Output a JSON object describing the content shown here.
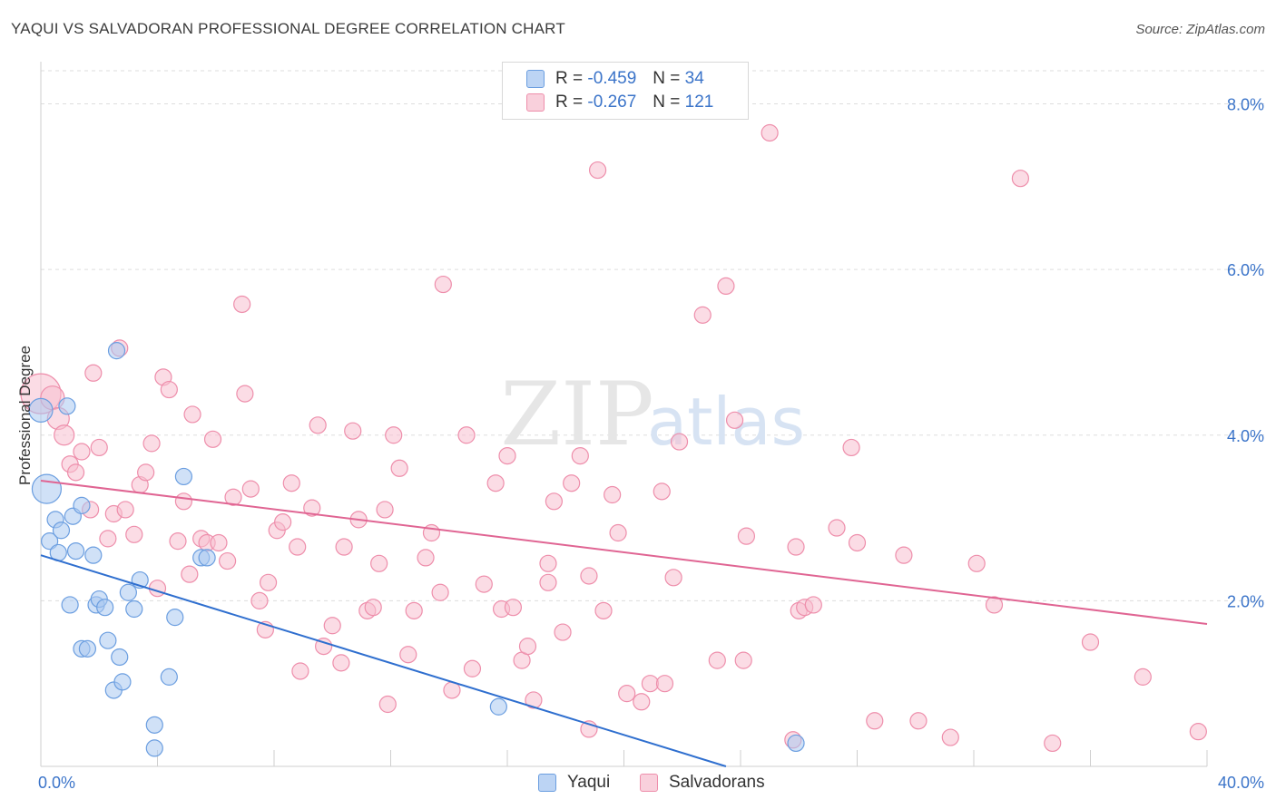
{
  "header": {
    "title": "YAQUI VS SALVADORAN PROFESSIONAL DEGREE CORRELATION CHART",
    "source": "Source: ZipAtlas.com"
  },
  "legend_top": [
    {
      "r_label": "R =",
      "r_value": "-0.459",
      "n_label": "N =",
      "n_value": "34"
    },
    {
      "r_label": "R =",
      "r_value": "-0.267",
      "n_label": "N =",
      "n_value": "121"
    }
  ],
  "colors": {
    "yaqui_fill": "#a9c8f0",
    "yaqui_stroke": "#6b9ee0",
    "yaqui_line": "#2f6fcf",
    "salv_fill": "#f7bfd0",
    "salv_stroke": "#ee8eab",
    "salv_line": "#e06593",
    "tick_label": "#3b74c9"
  },
  "watermark": {
    "zip": "ZIP",
    "atlas": "atlas"
  },
  "chart_data": {
    "type": "scatter",
    "title": "YAQUI VS SALVADORAN PROFESSIONAL DEGREE CORRELATION CHART",
    "xlabel": "",
    "ylabel": "Professional Degree",
    "xlim": [
      0,
      40
    ],
    "ylim": [
      0,
      8.4
    ],
    "x_tick_labels": [
      "0.0%",
      "40.0%"
    ],
    "y_ticks": [
      2,
      4,
      6,
      8
    ],
    "y_tick_labels": [
      "2.0%",
      "4.0%",
      "6.0%",
      "8.0%"
    ],
    "grid": true,
    "legend_position": "bottom",
    "series": [
      {
        "name": "Yaqui",
        "r": -0.459,
        "n": 34,
        "trend": {
          "x": [
            0,
            23.5
          ],
          "y": [
            2.55,
            0.0
          ]
        },
        "points": [
          [
            0.2,
            3.35,
            16
          ],
          [
            0.3,
            2.72,
            9
          ],
          [
            0.5,
            2.98,
            9
          ],
          [
            0.6,
            2.58,
            9
          ],
          [
            0.7,
            2.85,
            9
          ],
          [
            0.9,
            4.35,
            9
          ],
          [
            1.0,
            1.95,
            9
          ],
          [
            1.1,
            3.02,
            9
          ],
          [
            1.2,
            2.6,
            9
          ],
          [
            1.4,
            3.15,
            9
          ],
          [
            1.4,
            1.42,
            9
          ],
          [
            1.6,
            1.42,
            9
          ],
          [
            1.8,
            2.55,
            9
          ],
          [
            1.9,
            1.95,
            9
          ],
          [
            2.0,
            2.02,
            9
          ],
          [
            2.2,
            1.92,
            9
          ],
          [
            2.3,
            1.52,
            9
          ],
          [
            2.5,
            0.92,
            9
          ],
          [
            2.7,
            1.32,
            9
          ],
          [
            2.8,
            1.02,
            9
          ],
          [
            3.0,
            2.1,
            9
          ],
          [
            3.2,
            1.9,
            9
          ],
          [
            3.4,
            2.25,
            9
          ],
          [
            2.6,
            5.02,
            9
          ],
          [
            3.9,
            0.5,
            9
          ],
          [
            3.9,
            0.22,
            9
          ],
          [
            4.4,
            1.08,
            9
          ],
          [
            4.6,
            1.8,
            9
          ],
          [
            4.9,
            3.5,
            9
          ],
          [
            5.5,
            2.52,
            9
          ],
          [
            5.7,
            2.52,
            9
          ],
          [
            15.7,
            0.72,
            9
          ],
          [
            25.9,
            0.28,
            9
          ],
          [
            0.0,
            4.3,
            13
          ]
        ]
      },
      {
        "name": "Salvadorans",
        "r": -0.267,
        "n": 121,
        "trend": {
          "x": [
            0,
            40
          ],
          "y": [
            3.45,
            1.72
          ]
        },
        "points": [
          [
            0.0,
            4.5,
            22
          ],
          [
            0.4,
            4.45,
            13
          ],
          [
            0.6,
            4.2,
            12
          ],
          [
            0.8,
            4.0,
            11
          ],
          [
            1.0,
            3.65,
            9
          ],
          [
            1.2,
            3.55,
            9
          ],
          [
            1.4,
            3.8,
            9
          ],
          [
            1.7,
            3.1,
            9
          ],
          [
            1.8,
            4.75,
            9
          ],
          [
            2.0,
            3.85,
            9
          ],
          [
            2.3,
            2.75,
            9
          ],
          [
            2.5,
            3.05,
            9
          ],
          [
            2.7,
            5.05,
            9
          ],
          [
            2.9,
            3.1,
            9
          ],
          [
            3.2,
            2.8,
            9
          ],
          [
            3.4,
            3.4,
            9
          ],
          [
            3.6,
            3.55,
            9
          ],
          [
            3.8,
            3.9,
            9
          ],
          [
            4.0,
            2.15,
            9
          ],
          [
            4.2,
            4.7,
            9
          ],
          [
            4.4,
            4.55,
            9
          ],
          [
            4.7,
            2.72,
            9
          ],
          [
            4.9,
            3.2,
            9
          ],
          [
            5.1,
            2.32,
            9
          ],
          [
            5.2,
            4.25,
            9
          ],
          [
            5.5,
            2.75,
            9
          ],
          [
            5.7,
            2.7,
            9
          ],
          [
            5.9,
            3.95,
            9
          ],
          [
            6.1,
            2.7,
            9
          ],
          [
            6.4,
            2.48,
            9
          ],
          [
            6.6,
            3.25,
            9
          ],
          [
            6.9,
            5.58,
            9
          ],
          [
            7.0,
            4.5,
            9
          ],
          [
            7.2,
            3.35,
            9
          ],
          [
            7.5,
            2.0,
            9
          ],
          [
            7.7,
            1.65,
            9
          ],
          [
            7.8,
            2.22,
            9
          ],
          [
            8.1,
            2.85,
            9
          ],
          [
            8.3,
            2.95,
            9
          ],
          [
            8.6,
            3.42,
            9
          ],
          [
            8.8,
            2.65,
            9
          ],
          [
            8.9,
            1.15,
            9
          ],
          [
            9.3,
            3.12,
            9
          ],
          [
            9.5,
            4.12,
            9
          ],
          [
            9.7,
            1.45,
            9
          ],
          [
            10.0,
            1.7,
            9
          ],
          [
            10.3,
            1.25,
            9
          ],
          [
            10.4,
            2.65,
            9
          ],
          [
            10.7,
            4.05,
            9
          ],
          [
            10.9,
            2.98,
            9
          ],
          [
            11.2,
            1.88,
            9
          ],
          [
            11.4,
            1.92,
            9
          ],
          [
            11.6,
            2.45,
            9
          ],
          [
            11.8,
            3.1,
            9
          ],
          [
            11.9,
            0.75,
            9
          ],
          [
            12.1,
            4.0,
            9
          ],
          [
            12.3,
            3.6,
            9
          ],
          [
            12.6,
            1.35,
            9
          ],
          [
            12.8,
            1.88,
            9
          ],
          [
            13.2,
            2.52,
            9
          ],
          [
            13.4,
            2.82,
            9
          ],
          [
            13.7,
            2.1,
            9
          ],
          [
            13.8,
            5.82,
            9
          ],
          [
            14.1,
            0.92,
            9
          ],
          [
            14.6,
            4.0,
            9
          ],
          [
            14.8,
            1.18,
            9
          ],
          [
            15.2,
            2.2,
            9
          ],
          [
            15.6,
            3.42,
            9
          ],
          [
            15.8,
            1.9,
            9
          ],
          [
            16.0,
            3.75,
            9
          ],
          [
            16.2,
            1.92,
            9
          ],
          [
            16.5,
            1.28,
            9
          ],
          [
            16.7,
            1.45,
            9
          ],
          [
            16.9,
            0.8,
            9
          ],
          [
            17.4,
            2.45,
            9
          ],
          [
            17.4,
            2.22,
            9
          ],
          [
            17.6,
            3.2,
            9
          ],
          [
            17.9,
            1.62,
            9
          ],
          [
            18.2,
            3.42,
            9
          ],
          [
            18.5,
            3.75,
            9
          ],
          [
            18.8,
            2.3,
            9
          ],
          [
            19.1,
            7.2,
            9
          ],
          [
            19.3,
            1.88,
            9
          ],
          [
            19.6,
            3.28,
            9
          ],
          [
            19.8,
            2.82,
            9
          ],
          [
            20.1,
            0.88,
            9
          ],
          [
            20.6,
            0.78,
            9
          ],
          [
            20.9,
            1.0,
            9
          ],
          [
            21.3,
            3.32,
            9
          ],
          [
            21.4,
            1.0,
            9
          ],
          [
            21.7,
            2.28,
            9
          ],
          [
            21.9,
            3.92,
            9
          ],
          [
            22.7,
            5.45,
            9
          ],
          [
            23.2,
            1.28,
            9
          ],
          [
            23.5,
            5.8,
            9
          ],
          [
            23.8,
            4.18,
            9
          ],
          [
            24.1,
            1.28,
            9
          ],
          [
            24.2,
            2.78,
            9
          ],
          [
            25.0,
            7.65,
            9
          ],
          [
            25.8,
            0.32,
            9
          ],
          [
            25.9,
            2.65,
            9
          ],
          [
            26.0,
            1.88,
            9
          ],
          [
            26.2,
            1.92,
            9
          ],
          [
            26.5,
            1.95,
            9
          ],
          [
            27.3,
            2.88,
            9
          ],
          [
            27.8,
            3.85,
            9
          ],
          [
            28.0,
            2.7,
            9
          ],
          [
            28.6,
            0.55,
            9
          ],
          [
            29.6,
            2.55,
            9
          ],
          [
            30.1,
            0.55,
            9
          ],
          [
            31.2,
            0.35,
            9
          ],
          [
            32.1,
            2.45,
            9
          ],
          [
            32.7,
            1.95,
            9
          ],
          [
            33.6,
            7.1,
            9
          ],
          [
            34.7,
            0.28,
            9
          ],
          [
            36.0,
            1.5,
            9
          ],
          [
            37.8,
            1.08,
            9
          ],
          [
            39.7,
            0.42,
            9
          ],
          [
            18.8,
            0.45,
            9
          ]
        ]
      }
    ]
  }
}
